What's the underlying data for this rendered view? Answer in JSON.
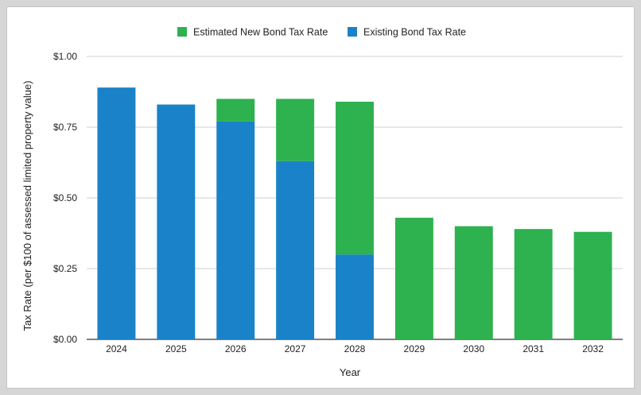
{
  "chart_data": {
    "type": "bar",
    "stacked": true,
    "categories": [
      "2024",
      "2025",
      "2026",
      "2027",
      "2028",
      "2029",
      "2030",
      "2031",
      "2032"
    ],
    "series": [
      {
        "name": "Existing Bond Tax Rate",
        "color": "#1a82c8",
        "values": [
          0.89,
          0.83,
          0.77,
          0.63,
          0.3,
          0,
          0,
          0,
          0
        ]
      },
      {
        "name": "Estimated New Bond Tax Rate",
        "color": "#2eb14f",
        "values": [
          0,
          0,
          0.08,
          0.22,
          0.54,
          0.43,
          0.4,
          0.39,
          0.38
        ]
      }
    ],
    "legend_order": [
      "Estimated New Bond Tax Rate",
      "Existing Bond Tax Rate"
    ],
    "legend_position": "top-center",
    "xlabel": "Year",
    "ylabel": "Tax Rate (per $100 of assessed limited property value)",
    "ylim": [
      0,
      1.0
    ],
    "yticks": [
      0,
      0.25,
      0.5,
      0.75,
      1.0
    ],
    "ytick_labels": [
      "$0.00",
      "$0.25",
      "$0.50",
      "$0.75",
      "$1.00"
    ],
    "grid": true
  }
}
